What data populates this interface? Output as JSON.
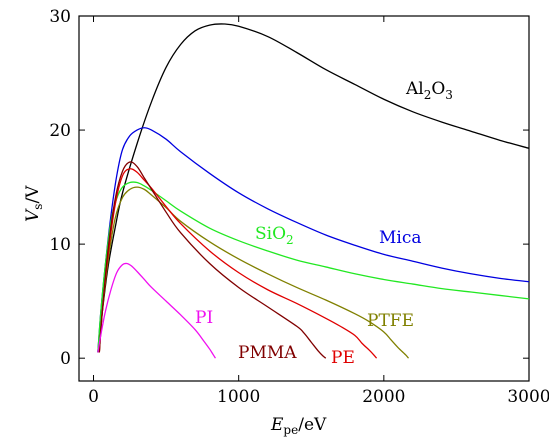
{
  "chart_data": {
    "type": "line",
    "xlabel": {
      "main": "E",
      "sub": "pe",
      "unit": "/eV"
    },
    "ylabel": {
      "main": "V",
      "sub": "s",
      "unit": "/V"
    },
    "xlim": [
      -100,
      3000
    ],
    "ylim": [
      -2,
      30
    ],
    "xticks": [
      0,
      1000,
      2000,
      3000
    ],
    "yticks": [
      0,
      10,
      20,
      30
    ],
    "grid": false,
    "legend": "inline labels",
    "series": [
      {
        "name": "Al2O3",
        "label_base": "Al",
        "label_sub1": "2",
        "label_mid": "O",
        "label_sub2": "3",
        "color": "#000000",
        "x": [
          30,
          60,
          100,
          150,
          200,
          300,
          400,
          500,
          600,
          700,
          800,
          900,
          1000,
          1200,
          1400,
          1600,
          1800,
          2000,
          2200,
          2400,
          2600,
          2800,
          3000
        ],
        "y": [
          0.5,
          4,
          8,
          11.5,
          14.5,
          18.8,
          22.5,
          25.5,
          27.5,
          28.7,
          29.2,
          29.3,
          29.1,
          28.2,
          26.8,
          25.3,
          24,
          22.7,
          21.6,
          20.7,
          19.9,
          19.1,
          18.4
        ]
      },
      {
        "name": "Mica",
        "color": "#0000e0",
        "x": [
          30,
          50,
          80,
          120,
          160,
          200,
          250,
          300,
          350,
          400,
          500,
          600,
          800,
          1000,
          1200,
          1400,
          1600,
          1800,
          2000,
          2200,
          2400,
          2600,
          2800,
          3000
        ],
        "y": [
          0.5,
          4,
          8,
          12.5,
          16,
          18.3,
          19.5,
          20,
          20.2,
          20,
          19.2,
          18.1,
          16.2,
          14.5,
          13.1,
          11.9,
          10.8,
          9.9,
          9.1,
          8.5,
          7.9,
          7.4,
          7,
          6.7
        ]
      },
      {
        "name": "SiO2",
        "label_base": "SiO",
        "label_sub1": "2",
        "color": "#22e822",
        "x": [
          30,
          50,
          80,
          120,
          160,
          200,
          250,
          300,
          350,
          400,
          500,
          600,
          800,
          1000,
          1200,
          1400,
          1600,
          1800,
          2000,
          2200,
          2400,
          2600,
          2800,
          3000
        ],
        "y": [
          0.5,
          4,
          8,
          12,
          14,
          15,
          15.4,
          15.4,
          15.1,
          14.7,
          13.8,
          12.9,
          11.4,
          10.3,
          9.4,
          8.6,
          8,
          7.4,
          6.9,
          6.5,
          6.1,
          5.8,
          5.5,
          5.2
        ]
      },
      {
        "name": "PTFE",
        "color": "#808000",
        "x": [
          40,
          60,
          100,
          150,
          200,
          250,
          300,
          350,
          400,
          500,
          600,
          800,
          1000,
          1200,
          1400,
          1600,
          1800,
          1900,
          2000,
          2050,
          2100,
          2150,
          2170
        ],
        "y": [
          0.5,
          4,
          8.5,
          12.3,
          14.1,
          14.8,
          15,
          14.8,
          14.3,
          13.2,
          12,
          10.2,
          8.7,
          7.4,
          6.2,
          5.1,
          3.9,
          3.2,
          2.3,
          1.6,
          0.9,
          0.3,
          0
        ]
      },
      {
        "name": "PE",
        "color": "#e00000",
        "x": [
          40,
          60,
          100,
          150,
          200,
          250,
          300,
          350,
          400,
          500,
          600,
          800,
          1000,
          1200,
          1400,
          1600,
          1700,
          1800,
          1850,
          1900,
          1930,
          1950
        ],
        "y": [
          0.5,
          4,
          9,
          13.5,
          16,
          16.6,
          16.3,
          15.6,
          14.9,
          13.3,
          11.8,
          9.4,
          7.5,
          6,
          4.8,
          3.5,
          2.8,
          2,
          1.3,
          0.7,
          0.3,
          0
        ]
      },
      {
        "name": "PMMA",
        "color": "#800000",
        "x": [
          40,
          60,
          100,
          150,
          200,
          250,
          300,
          350,
          400,
          500,
          600,
          800,
          1000,
          1200,
          1400,
          1450,
          1500,
          1550,
          1580,
          1600
        ],
        "y": [
          0.5,
          4,
          9.5,
          14,
          16.4,
          17.2,
          16.8,
          15.8,
          14.8,
          12.8,
          11,
          8.3,
          6.2,
          4.5,
          2.8,
          2.2,
          1.4,
          0.6,
          0.2,
          0
        ]
      },
      {
        "name": "PI",
        "color": "#f010f0",
        "x": [
          30,
          50,
          80,
          120,
          160,
          200,
          230,
          260,
          300,
          350,
          400,
          500,
          600,
          700,
          760,
          800,
          820,
          840
        ],
        "y": [
          0.5,
          2,
          4,
          6,
          7.5,
          8.2,
          8.3,
          8.1,
          7.6,
          6.9,
          6.2,
          5,
          3.8,
          2.5,
          1.5,
          0.8,
          0.4,
          0
        ]
      }
    ]
  }
}
